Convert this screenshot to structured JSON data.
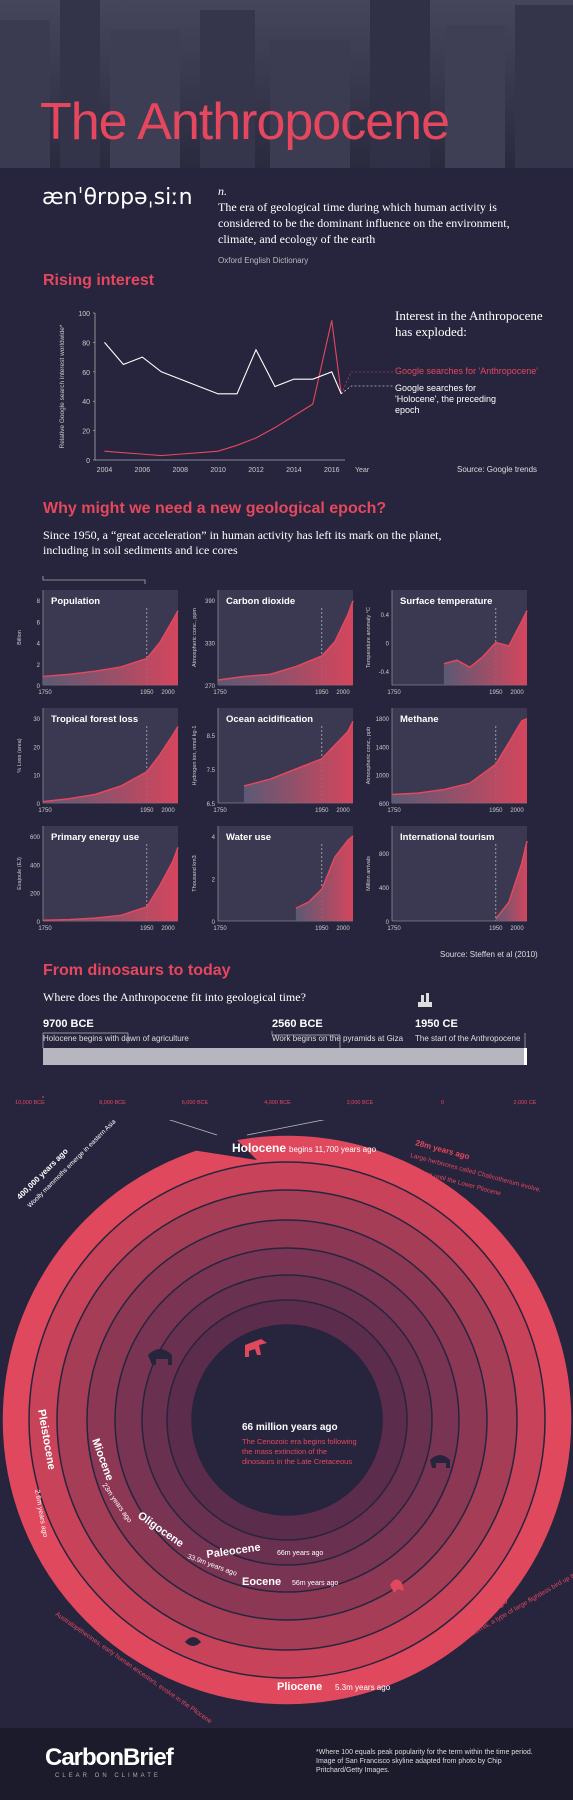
{
  "header": {
    "title": "The Anthropocene"
  },
  "definition": {
    "pronunciation": "ænˈθrɒpəˌsiːn",
    "pos": "n.",
    "text": "The era of geological time during which human activity is considered to be the dominant influence on the environment, climate, and ecology of the earth",
    "source": "Oxford English Dictionary"
  },
  "rising": {
    "heading": "Rising interest",
    "headline": "Interest in the Anthropocene has exploded:",
    "legend_anthro": "Google searches for 'Anthropocene'",
    "legend_holocene": "Google searches for 'Holocene', the preceding epoch",
    "source": "Source: Google trends",
    "ylabel": "Relative Google search interest worldwide*",
    "xlabel": "Year"
  },
  "epoch": {
    "heading": "Why might we need a new geological epoch?",
    "lead": "Since 1950, a “great acceleration” in human activity has left its mark on the planet, including in soil sediments and ice cores",
    "source": "Source: Steffen et al (2010)"
  },
  "timeline": {
    "heading": "From dinosaurs to today",
    "lead": "Where does the Anthropocene fit into geological time?",
    "events": [
      {
        "date": "9700 BCE",
        "desc": "Holocene begins with dawn of agriculture"
      },
      {
        "date": "2560 BCE",
        "desc": "Work begins on the pyramids at Giza"
      },
      {
        "date": "1950 CE",
        "desc": "The start of the Anthropocene"
      }
    ],
    "axis": [
      "10,000 BCE",
      "8,000 BCE",
      "6,000 BCE",
      "4,000 BCE",
      "2,000 BCE",
      "0",
      "2,000 CE"
    ]
  },
  "rings": {
    "holocene": "Holocene",
    "holocene_sub": "begins 11,700 years ago",
    "pleistocene": "Pleistocene",
    "pleistocene_sub": "2.6m years ago",
    "pliocene": "Pliocene",
    "pliocene_sub": "5.3m years ago",
    "miocene": "Miocene",
    "miocene_sub": "23m years ago",
    "oligocene": "Oligocene",
    "oligocene_sub": "33.9m years ago",
    "eocene": "Eocene",
    "eocene_sub": "56m years ago",
    "paleocene": "Paleocene",
    "paleocene_sub": "66m years ago",
    "center_title": "66 million years ago",
    "center_text": "The Cenozoic era begins following the mass extinction of the dinosaurs in the Late Cretaceous",
    "a400_t": "400,000 years ago",
    "a400_d": "Woolly mammoths emerge in eastern Asia",
    "a28_t": "28m years ago",
    "a28_d": "Large herbivores called Chalicotherium evolve, persisting until the Lower Pliocene",
    "a4_t": "4m years ago",
    "a4_d": "Australopithecines, early human ancestors, evolve in the Pliocene",
    "a56_t": "56m years ago",
    "a56_d": "Gastornis, a type of large flightless bird up to 2m high, walk the earth"
  },
  "footer": {
    "brand": "CarbonBrief",
    "tagline": "CLEAR ON CLIMATE",
    "note": "*Where 100 equals peak popularity for the term within the time period. Image of San Francisco skyline adapted from photo by Chip Pritchard/Getty Images."
  },
  "chart_data": [
    {
      "type": "line",
      "title": "Rising interest",
      "x": [
        2004,
        2005,
        2006,
        2007,
        2008,
        2009,
        2010,
        2011,
        2012,
        2013,
        2014,
        2015,
        2016,
        2016.5
      ],
      "series": [
        {
          "name": "Google searches for 'Anthropocene'",
          "color": "#e5475e",
          "values": [
            6,
            5,
            4,
            3,
            4,
            5,
            6,
            10,
            15,
            22,
            30,
            38,
            95,
            45
          ]
        },
        {
          "name": "Google searches for 'Holocene', the preceding epoch",
          "color": "#ffffff",
          "values": [
            80,
            65,
            70,
            60,
            55,
            50,
            45,
            45,
            75,
            50,
            55,
            55,
            60,
            45
          ]
        }
      ],
      "xlabel": "Year",
      "ylabel": "Relative Google search interest worldwide*",
      "ylim": [
        0,
        100
      ]
    },
    {
      "type": "area",
      "title": "Population",
      "ylabel": "Billion",
      "yticks": [
        "0",
        "2",
        "4",
        "6",
        "8"
      ],
      "ylim": [
        0,
        8
      ],
      "x": [
        1750,
        1800,
        1850,
        1900,
        1950,
        1975,
        2000,
        2010
      ],
      "values": [
        0.8,
        1.0,
        1.3,
        1.7,
        2.5,
        4.0,
        6.1,
        7.0
      ]
    },
    {
      "type": "area",
      "title": "Carbon dioxide",
      "ylabel": "Atmospheric conc., ppm",
      "yticks": [
        "270",
        "330",
        "390"
      ],
      "ylim": [
        270,
        390
      ],
      "x": [
        1750,
        1800,
        1850,
        1900,
        1950,
        1975,
        2000,
        2010
      ],
      "values": [
        277,
        282,
        285,
        296,
        311,
        331,
        369,
        389
      ]
    },
    {
      "type": "area",
      "title": "Surface temperature",
      "ylabel": "Temperature anomaly °C",
      "yticks": [
        "-0.4",
        "0",
        "0.4"
      ],
      "ylim": [
        -0.6,
        0.6
      ],
      "x": [
        1850,
        1875,
        1900,
        1925,
        1950,
        1975,
        2000,
        2010
      ],
      "values": [
        -0.3,
        -0.25,
        -0.35,
        -0.2,
        0.0,
        -0.05,
        0.3,
        0.45
      ]
    },
    {
      "type": "area",
      "title": "Tropical forest loss",
      "ylabel": "% Loss (area)",
      "yticks": [
        "0",
        "10",
        "20",
        "30"
      ],
      "ylim": [
        0,
        30
      ],
      "x": [
        1750,
        1800,
        1850,
        1900,
        1950,
        1975,
        2000,
        2010
      ],
      "values": [
        0.5,
        1.5,
        3,
        6,
        11,
        17,
        24,
        27
      ]
    },
    {
      "type": "area",
      "title": "Ocean acidification",
      "ylabel": "Hydrogen ion, nmol kg-1",
      "yticks": [
        "6.5",
        "7.5",
        "8.5"
      ],
      "ylim": [
        6.5,
        9
      ],
      "x": [
        1800,
        1850,
        1900,
        1950,
        1975,
        2000,
        2010
      ],
      "values": [
        7.0,
        7.2,
        7.5,
        7.8,
        8.2,
        8.6,
        8.9
      ]
    },
    {
      "type": "area",
      "title": "Methane",
      "ylabel": "Atmospheric conc., ppb",
      "yticks": [
        "600",
        "1000",
        "1400",
        "1800"
      ],
      "ylim": [
        600,
        1800
      ],
      "x": [
        1750,
        1800,
        1850,
        1900,
        1950,
        1975,
        2000,
        2010
      ],
      "values": [
        720,
        740,
        790,
        880,
        1150,
        1450,
        1760,
        1790
      ]
    },
    {
      "type": "area",
      "title": "Primary energy use",
      "ylabel": "Exajoule (EJ)",
      "yticks": [
        "0",
        "200",
        "400",
        "600"
      ],
      "ylim": [
        0,
        600
      ],
      "x": [
        1750,
        1800,
        1850,
        1900,
        1950,
        1975,
        2000,
        2010
      ],
      "values": [
        5,
        10,
        20,
        40,
        100,
        250,
        420,
        520
      ]
    },
    {
      "type": "area",
      "title": "Water use",
      "ylabel": "Thousand km3",
      "yticks": [
        "0",
        "2",
        "4"
      ],
      "ylim": [
        0,
        4
      ],
      "x": [
        1900,
        1925,
        1950,
        1975,
        2000,
        2010
      ],
      "values": [
        0.6,
        0.9,
        1.5,
        3.0,
        3.8,
        4.0
      ]
    },
    {
      "type": "area",
      "title": "International tourism",
      "ylabel": "Million arrivals",
      "yticks": [
        "0",
        "400",
        "800"
      ],
      "ylim": [
        0,
        1000
      ],
      "x": [
        1950,
        1975,
        2000,
        2010
      ],
      "values": [
        25,
        220,
        680,
        940
      ]
    }
  ]
}
